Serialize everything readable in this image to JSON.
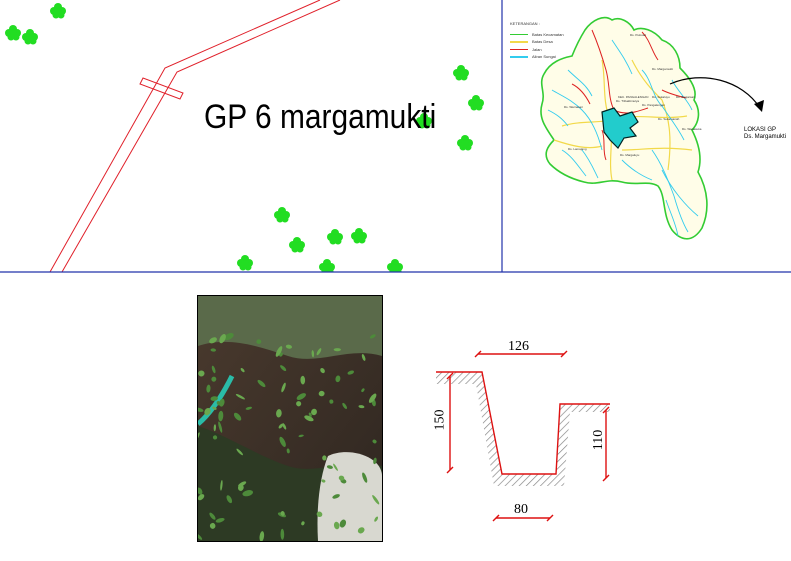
{
  "site_map": {
    "title": "GP 6 margamukti",
    "colors": {
      "road": "#e0202a",
      "trees": "#22dd22",
      "frame": "#2233aa"
    }
  },
  "regional_map": {
    "legend": {
      "header": "KETERANGAN :",
      "items": [
        {
          "label": "Batas Kecamatan",
          "color": "#33cc33"
        },
        {
          "label": "Batas Desa",
          "color": "#f2d94a"
        },
        {
          "label": "Jalan",
          "color": "#dd2222"
        },
        {
          "label": "Aliran Sungai",
          "color": "#33ccee"
        }
      ]
    },
    "location_label": [
      "LOKASI GP",
      "Ds. Margamukti"
    ],
    "village_labels": [
      "Ds. Margamukti",
      "Ds. Pangalengan",
      "Ds. Tribaktimulya",
      "Ds. Sukamanah",
      "Ds. Warnasari",
      "Ds. Sukaluyu",
      "Ds. Lamajang",
      "Ds. Margaluyu",
      "Ds. Pulosari",
      "Ds. Wanasuka",
      "Ds. Banjarsari",
      "KEC. PANGALENGAN"
    ]
  },
  "photo": {
    "icon": "site-photo"
  },
  "cross_section": {
    "top_width": "126",
    "bottom_width": "80",
    "left_height": "150",
    "right_height": "110",
    "colors": {
      "dimension": "#dd1111",
      "outline": "#dd1111",
      "hatch": "#888888"
    }
  }
}
